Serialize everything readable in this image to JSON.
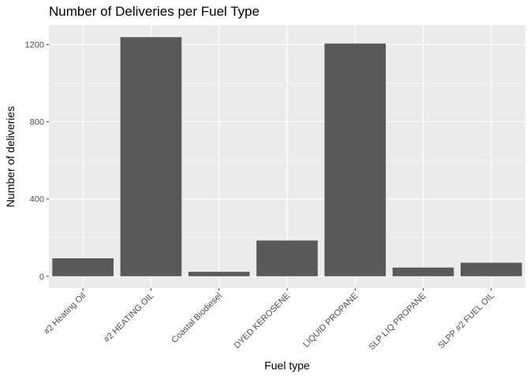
{
  "chart_data": {
    "type": "bar",
    "title": "Number of Deliveries per Fuel Type",
    "xlabel": "Fuel type",
    "ylabel": "Number of deliveries",
    "categories": [
      "#2 Heating Oil",
      "#2 HEATING OIL",
      "Coastal Biodiesel",
      "DYED KEROSENE",
      "LIQUID PROPANE",
      "SLP LIQ PROPANE",
      "SLPP #2 FUEL OIL"
    ],
    "values": [
      93,
      1238,
      23,
      185,
      1205,
      45,
      70
    ],
    "ylim": [
      -62,
      1300
    ],
    "yticks": [
      0,
      400,
      800,
      1200
    ],
    "yticks_minor": [
      200,
      600,
      1000
    ],
    "ytick_labels": [
      "0",
      "400",
      "800",
      "1200"
    ],
    "grid": true,
    "legend": "none",
    "colors": {
      "panel_background": "#ebebeb",
      "grid_major": "#ffffff",
      "bar_fill": "#595959",
      "tick_text": "#4d4d4d",
      "tick_mark": "#333333"
    }
  }
}
